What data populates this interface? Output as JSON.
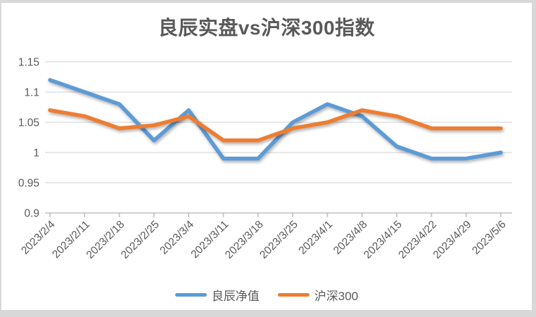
{
  "window": {
    "frame_color": "#d8d8d8",
    "surface_color": "#ffffff"
  },
  "chart_data": {
    "type": "line",
    "title": "良辰实盘vs沪深300指数",
    "categories": [
      "2023/2/4",
      "2023/2/11",
      "2023/2/18",
      "2023/2/25",
      "2023/3/4",
      "2023/3/11",
      "2023/3/18",
      "2023/3/25",
      "2023/4/1",
      "2023/4/8",
      "2023/4/15",
      "2023/4/22",
      "2023/4/29",
      "2023/5/6"
    ],
    "series": [
      {
        "name": "良辰净值",
        "color": "#5B9BD5",
        "values": [
          1.12,
          1.1,
          1.08,
          1.02,
          1.07,
          0.99,
          0.99,
          1.05,
          1.08,
          1.06,
          1.01,
          0.99,
          0.99,
          1.0
        ]
      },
      {
        "name": "沪深300",
        "color": "#ED7D31",
        "values": [
          1.07,
          1.06,
          1.04,
          1.045,
          1.06,
          1.02,
          1.02,
          1.04,
          1.05,
          1.07,
          1.06,
          1.04,
          1.04,
          1.04
        ]
      }
    ],
    "y_axis": {
      "min": 0.9,
      "max": 1.15,
      "step": 0.05,
      "tick_labels": [
        "1.15",
        "1.1",
        "1.05",
        "1",
        "0.95",
        "0.9"
      ]
    },
    "x_axis": {
      "label_rotation_deg": -45
    },
    "grid": true,
    "legend_position": "bottom",
    "styles": {
      "title_color": "#595959",
      "axis_label_color": "#595959",
      "gridline_color": "#d9d9d9",
      "axis_line_color": "#bfbfbf"
    }
  }
}
